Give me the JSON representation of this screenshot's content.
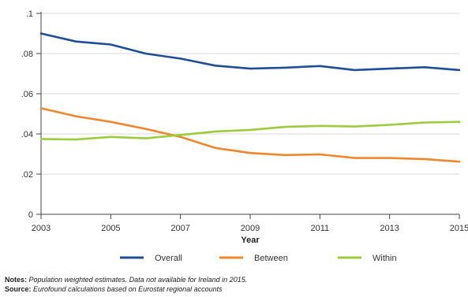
{
  "chart_data": {
    "type": "line",
    "x": [
      2003,
      2004,
      2005,
      2006,
      2007,
      2008,
      2009,
      2010,
      2011,
      2012,
      2013,
      2014,
      2015
    ],
    "xticks": [
      "2003",
      "2005",
      "2007",
      "2009",
      "2011",
      "2013",
      "2015"
    ],
    "yticks": [
      "0",
      ".02",
      ".04",
      ".06",
      ".08",
      ".1"
    ],
    "xlabel": "Year",
    "ylabel": "",
    "ylim": [
      0,
      0.1
    ],
    "xlim": [
      2003,
      2015
    ],
    "grid": "horizontal",
    "legend_position": "bottom",
    "series": [
      {
        "name": "Overall",
        "color": "#1f4e96",
        "values": [
          0.09,
          0.086,
          0.0845,
          0.08,
          0.0775,
          0.074,
          0.0725,
          0.073,
          0.0738,
          0.0718,
          0.0725,
          0.0732,
          0.0718
        ]
      },
      {
        "name": "Between",
        "color": "#f0872d",
        "values": [
          0.0528,
          0.0488,
          0.046,
          0.0425,
          0.0385,
          0.033,
          0.0305,
          0.0295,
          0.0298,
          0.028,
          0.028,
          0.0275,
          0.0262
        ]
      },
      {
        "name": "Within",
        "color": "#9ccc3c",
        "values": [
          0.0375,
          0.0372,
          0.0385,
          0.0378,
          0.0395,
          0.0412,
          0.042,
          0.0435,
          0.044,
          0.0437,
          0.0445,
          0.0457,
          0.046
        ]
      }
    ]
  },
  "notes": {
    "notes_label": "Notes:",
    "notes_text": "Population weighted estimates. Data not available for Ireland in 2015.",
    "source_label": "Source:",
    "source_text": "Eurofound calculations based on Eurostat regional accounts"
  }
}
